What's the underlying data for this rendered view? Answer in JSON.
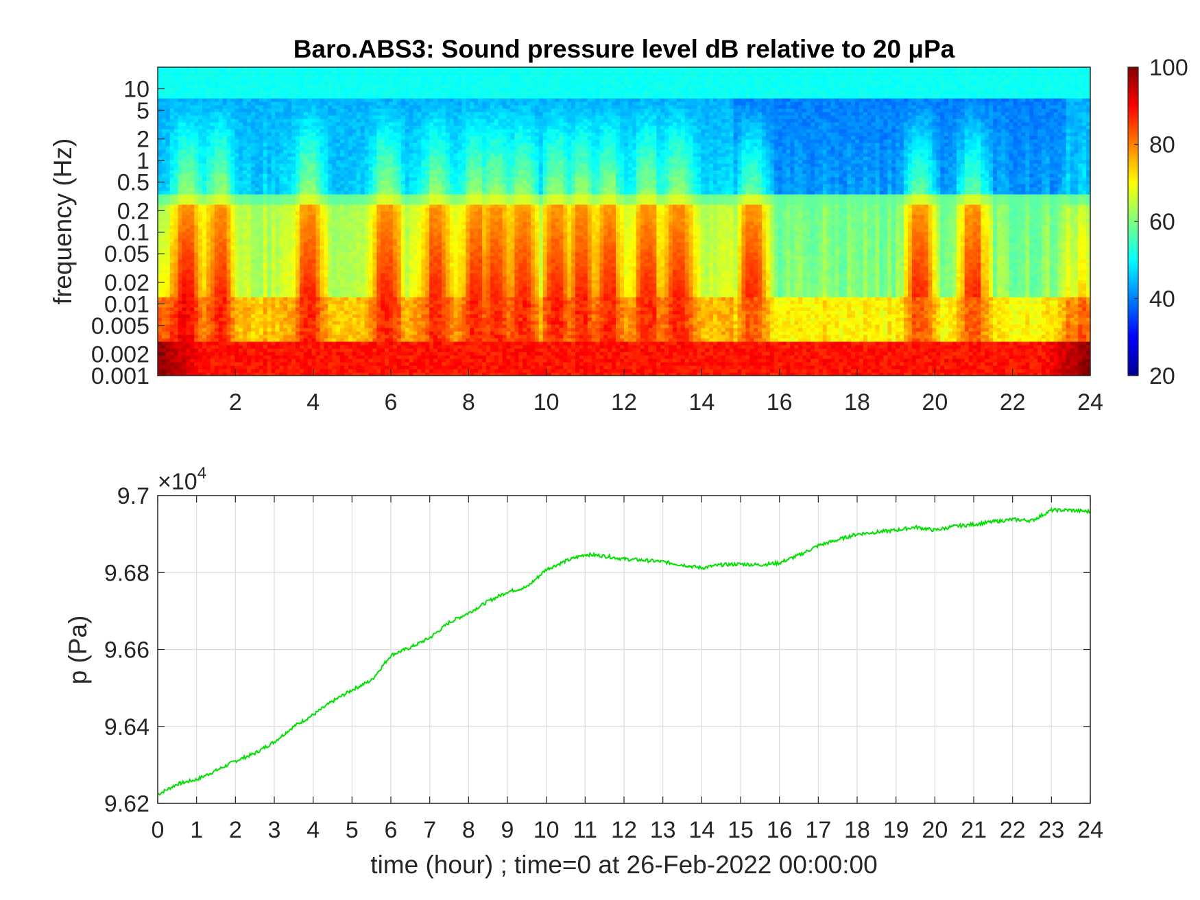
{
  "figure": {
    "title": "Baro.ABS3: Sound pressure level dB relative to 20 μPa"
  },
  "chart_data": [
    {
      "type": "heatmap",
      "title": "Baro.ABS3: Sound pressure level dB relative to 20 μPa",
      "xlabel": "",
      "ylabel": "frequency (Hz)",
      "x_range_hours": [
        0,
        24
      ],
      "x_ticks": [
        2,
        4,
        6,
        8,
        10,
        12,
        14,
        16,
        18,
        20,
        22,
        24
      ],
      "y_scale": "log",
      "y_range_hz": [
        0.001,
        20
      ],
      "y_ticks": [
        0.001,
        0.002,
        0.005,
        0.01,
        0.02,
        0.05,
        0.1,
        0.2,
        0.5,
        1,
        2,
        5,
        10
      ],
      "y_tick_labels": [
        "0.001",
        "0.002",
        "0.005",
        "0.01",
        "0.02",
        "0.05",
        "0.1",
        "0.2",
        "0.5",
        "1",
        "2",
        "5",
        "10"
      ],
      "colormap": "jet",
      "colorbar": {
        "range": [
          20,
          100
        ],
        "ticks": [
          20,
          40,
          60,
          80,
          100
        ],
        "placement": "right"
      },
      "activity_peaks_hours": [
        0.8,
        1.6,
        3.9,
        5.9,
        7.2,
        8.2,
        8.7,
        9.4,
        10.3,
        10.9,
        11.6,
        12.6,
        13.4,
        15.3,
        19.6,
        21.0
      ],
      "level_db_description": {
        "low_freq_below_0.003Hz": 88,
        "0.01Hz_band": 65,
        "0.2Hz_band": 57,
        "1Hz_band": 42,
        "above_8Hz": 50
      }
    },
    {
      "type": "line",
      "title": "",
      "xlabel": "time (hour) ; time=0 at 26-Feb-2022 00:00:00",
      "ylabel": "p (Pa)",
      "y_exponent_label": "×10",
      "y_exponent_power": "4",
      "xlim": [
        0,
        24
      ],
      "ylim": [
        9.62,
        9.7
      ],
      "x_ticks": [
        0,
        1,
        2,
        3,
        4,
        5,
        6,
        7,
        8,
        9,
        10,
        11,
        12,
        13,
        14,
        15,
        16,
        17,
        18,
        19,
        20,
        21,
        22,
        23,
        24
      ],
      "y_ticks": [
        9.62,
        9.64,
        9.66,
        9.68,
        9.7
      ],
      "y_tick_labels": [
        "9.62",
        "9.64",
        "9.66",
        "9.68",
        "9.7"
      ],
      "grid": true,
      "series": [
        {
          "color": "#00e000",
          "x": [
            0,
            0.5,
            1,
            1.5,
            2,
            2.5,
            3,
            3.5,
            4,
            4.5,
            5,
            5.5,
            6,
            6.5,
            7,
            7.5,
            8,
            8.5,
            9,
            9.5,
            10,
            10.5,
            11,
            11.5,
            12,
            12.5,
            13,
            13.5,
            14,
            14.5,
            15,
            15.5,
            16,
            16.5,
            17,
            17.5,
            18,
            18.5,
            19,
            19.5,
            20,
            20.5,
            21,
            21.5,
            22,
            22.5,
            23,
            23.5,
            24
          ],
          "y": [
            9.6223,
            9.625,
            9.6262,
            9.6285,
            9.631,
            9.633,
            9.636,
            9.64,
            9.643,
            9.6465,
            9.6495,
            9.652,
            9.6585,
            9.6605,
            9.663,
            9.667,
            9.6695,
            9.6725,
            9.675,
            9.6762,
            9.6808,
            9.683,
            9.6847,
            9.6843,
            9.6835,
            9.6832,
            9.6828,
            9.682,
            9.6812,
            9.682,
            9.6822,
            9.682,
            9.6825,
            9.6845,
            9.687,
            9.6885,
            9.69,
            9.6905,
            9.691,
            9.6918,
            9.691,
            9.692,
            9.6925,
            9.6932,
            9.6938,
            9.6935,
            9.6962,
            9.6962,
            9.6958
          ]
        }
      ]
    }
  ]
}
